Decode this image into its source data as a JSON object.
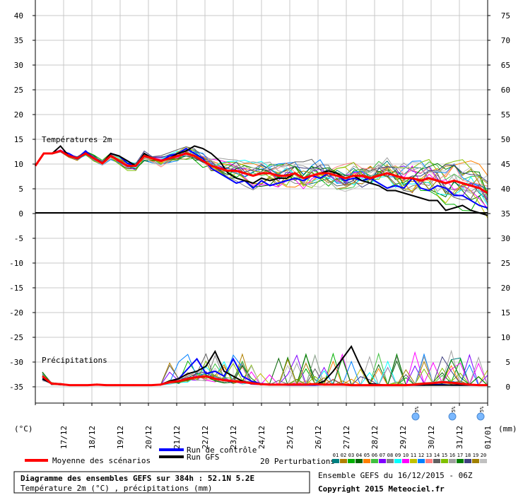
{
  "chart_data": {
    "type": "line",
    "title": "Diagramme des ensembles GEFS sur 384h : 52.1N 5.2E",
    "subtitle": "Température 2m (°C) , précipitations (mm)",
    "left_axis_unit": "(°C)",
    "right_axis_unit": "(mm)",
    "left_ticks": [
      "40",
      "35",
      "30",
      "25",
      "20",
      "15",
      "10",
      "5",
      "0",
      "-5",
      "-10",
      "-15",
      "-20",
      "-25",
      "-30",
      "-35"
    ],
    "right_ticks": [
      "75",
      "70",
      "65",
      "60",
      "55",
      "50",
      "45",
      "40",
      "35",
      "30",
      "25",
      "20",
      "15",
      "10",
      "5",
      "0"
    ],
    "dates": [
      "17/12",
      "18/12",
      "19/12",
      "20/12",
      "21/12",
      "22/12",
      "23/12",
      "24/12",
      "25/12",
      "26/12",
      "27/12",
      "28/12",
      "29/12",
      "30/12",
      "31/12",
      "01/01"
    ],
    "panel_labels": {
      "temperature": "Températures 2m",
      "precipitation": "Précipitations"
    },
    "grid": true,
    "snow_markers": [
      {
        "day": 13.7,
        "label": "5%"
      },
      {
        "day": 15.0,
        "label": "5%"
      },
      {
        "day": 16.0,
        "label": "5%"
      }
    ],
    "temperature": {
      "mean": {
        "name": "Moyenne des scénarios",
        "color": "#ff0000",
        "values": [
          9.5,
          12,
          12,
          12.5,
          11.5,
          11,
          12,
          11,
          10,
          11.5,
          10.5,
          9.5,
          9.5,
          11.5,
          11,
          10.5,
          11,
          11.5,
          12,
          11.5,
          10.5,
          9.5,
          9,
          8.5,
          8.5,
          8,
          7.5,
          8,
          8,
          7.5,
          7.5,
          8,
          7,
          7.5,
          8,
          8,
          7.5,
          7,
          7.5,
          7.5,
          7,
          7.5,
          8,
          7.5,
          7,
          7,
          6.5,
          7,
          6.5,
          6,
          6.5,
          6,
          5.5,
          5,
          4
        ]
      },
      "control": {
        "name": "Run de contrôle",
        "color": "#0000ff",
        "values": [
          9.5,
          12,
          12,
          12.5,
          12,
          11,
          12.5,
          11,
          10,
          12,
          11.5,
          10,
          9.5,
          12,
          11,
          10.5,
          11.5,
          12,
          13,
          12,
          11,
          9,
          8,
          7,
          6,
          6.5,
          5,
          6.5,
          5.5,
          6,
          6.5,
          7,
          6.5,
          7.5,
          7,
          8,
          7.5,
          6.5,
          7,
          6.5,
          7,
          6,
          5,
          5.5,
          5,
          7,
          5,
          4.5,
          5.5,
          5,
          3.5,
          3.5,
          2.5,
          1.5,
          1
        ]
      },
      "gfs": {
        "name": "Run GFS",
        "color": "#000000",
        "values": [
          9.5,
          12,
          12,
          13.5,
          11.5,
          11,
          12,
          11,
          10,
          12,
          11.5,
          10.5,
          9.5,
          12,
          11,
          10.5,
          11,
          12,
          12.5,
          13.5,
          13,
          12,
          10.5,
          8,
          7,
          6.5,
          6,
          7,
          6.5,
          7,
          7,
          8,
          7,
          7.5,
          8,
          8.5,
          8,
          7,
          7.5,
          6.5,
          6,
          5.5,
          4.5,
          4.5,
          4,
          3.5,
          3,
          2.5,
          2.5,
          0.5,
          1,
          1.5,
          0.5,
          0,
          -0.5
        ]
      }
    },
    "precipitation": {
      "mean": {
        "name": "Moyenne des scénarios",
        "color": "#ff0000",
        "values": [
          2,
          0.5,
          0.4,
          0.2,
          0.2,
          0.2,
          0.3,
          0.2,
          0.2,
          0.2,
          0.2,
          0.2,
          0.2,
          0.3,
          0.8,
          1,
          1.5,
          1.8,
          2,
          1.5,
          1.2,
          1,
          0.8,
          0.6,
          0.4,
          0.3,
          0.3,
          0.3,
          0.3,
          0.3,
          0.4,
          0.3,
          0.3,
          0.3,
          0.2,
          0.2,
          0.2,
          0.2,
          0.2,
          0.2,
          0.2,
          0.3,
          0.5,
          0.6,
          0.8,
          0.7,
          0.5,
          0.3,
          0.2,
          0.2
        ]
      },
      "control": {
        "name": "Run de contrôle",
        "color": "#0000ff",
        "values": [
          1.5,
          0.5,
          0.3,
          0.2,
          0.2,
          0.2,
          0.3,
          0.2,
          0.2,
          0.2,
          0.2,
          0.2,
          0.2,
          0.3,
          1,
          1.5,
          3.5,
          5.5,
          2.5,
          3,
          2,
          5.5,
          2,
          1,
          0.5,
          0.4,
          0.3,
          0.2,
          0.2,
          0.2,
          0.2,
          0.3,
          0.3,
          0.3,
          0.2,
          0.2,
          0.2,
          0.2,
          0.2,
          0.2,
          0.2,
          0.2,
          0.2,
          0.3,
          0.3,
          0.2,
          0.2,
          0.2,
          0.2,
          0.2
        ]
      },
      "gfs": {
        "name": "Run GFS",
        "color": "#000000",
        "values": [
          1.5,
          0.5,
          0.3,
          0.2,
          0.2,
          0.2,
          0.3,
          0.2,
          0.2,
          0.2,
          0.2,
          0.2,
          0.2,
          0.3,
          1,
          1.5,
          2.5,
          3,
          4,
          7,
          3,
          2,
          1,
          0.5,
          0.4,
          0.3,
          0.3,
          0.3,
          0.3,
          0.3,
          0.3,
          1,
          3,
          5.5,
          8,
          4,
          0.5,
          0.3,
          0.2,
          0.2,
          0.2,
          0.2,
          0.2,
          0.2,
          0.2,
          0.2,
          0.2,
          0.2,
          0.2,
          0.2
        ]
      }
    }
  },
  "legend": {
    "mean_label": "Moyenne des scénarios",
    "control_label": "Run de contrôle",
    "gfs_label": "Run GFS",
    "perturbations_label": "20 Perturbations",
    "perturbation_numbers": [
      "01",
      "02",
      "03",
      "04",
      "05",
      "06",
      "07",
      "08",
      "09",
      "10",
      "11",
      "12",
      "13",
      "14",
      "15",
      "16",
      "17",
      "18",
      "19",
      "20"
    ],
    "perturbation_colors": [
      "#008080",
      "#b08000",
      "#00b000",
      "#006400",
      "#ff8000",
      "#40c040",
      "#8000ff",
      "#808080",
      "#00ffff",
      "#ff00ff",
      "#c0c000",
      "#0080ff",
      "#ff8080",
      "#606060",
      "#80c000",
      "#a0a0a0",
      "#008000",
      "#404080",
      "#a08000",
      "#c0c0c0"
    ]
  },
  "footer": {
    "ensemble_info": "Ensemble GEFS du 16/12/2015 - 06Z",
    "copyright": "Copyright 2015 Meteociel.fr"
  }
}
